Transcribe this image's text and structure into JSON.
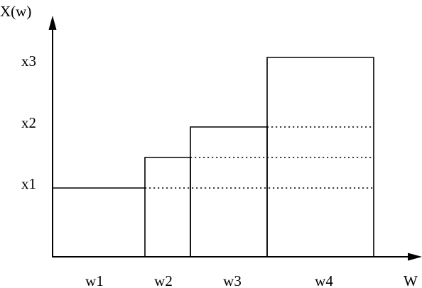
{
  "axes": {
    "y_label": "X(w)",
    "x_label": "W"
  },
  "y_levels": [
    {
      "label": "x1"
    },
    {
      "label": "x2"
    },
    {
      "label": "x3"
    }
  ],
  "x_segments": [
    {
      "label": "w1"
    },
    {
      "label": "w2"
    },
    {
      "label": "w3"
    },
    {
      "label": "w4"
    }
  ]
}
